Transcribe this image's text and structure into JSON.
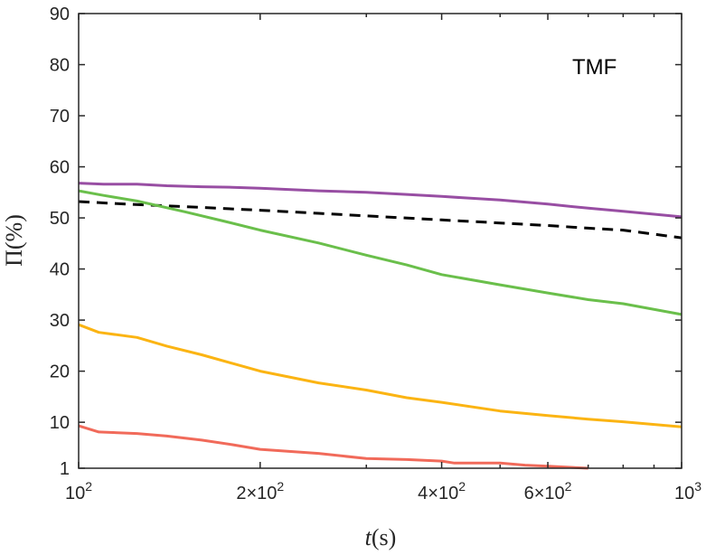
{
  "chart_data": {
    "type": "line",
    "title": "",
    "annotation": "TMF",
    "xlabel": "t(s)",
    "ylabel": "Π(%)",
    "xscale": "log",
    "xlim": [
      100,
      1000
    ],
    "ylim": [
      1,
      90
    ],
    "grid": false,
    "x_ticks": [
      {
        "value": 100,
        "base": "10",
        "exp": "2"
      },
      {
        "value": 200,
        "base": "2×10",
        "exp": "2"
      },
      {
        "value": 400,
        "base": "4×10",
        "exp": "2"
      },
      {
        "value": 600,
        "base": "6×10",
        "exp": "2"
      },
      {
        "value": 1000,
        "base": "10",
        "exp": "3"
      }
    ],
    "y_ticks": [
      {
        "value": 1,
        "label": "1"
      },
      {
        "value": 10,
        "label": "10"
      },
      {
        "value": 20,
        "label": "20"
      },
      {
        "value": 30,
        "label": "30"
      },
      {
        "value": 40,
        "label": "40"
      },
      {
        "value": 50,
        "label": "50"
      },
      {
        "value": 60,
        "label": "60"
      },
      {
        "value": 70,
        "label": "70"
      },
      {
        "value": 80,
        "label": "80"
      },
      {
        "value": 90,
        "label": "90"
      }
    ],
    "series": [
      {
        "color": "#984EA3",
        "style": "solid",
        "x": [
          100,
          110,
          125,
          140,
          160,
          180,
          200,
          250,
          300,
          350,
          400,
          500,
          600,
          700,
          800,
          1000
        ],
        "y": [
          56.8,
          56.6,
          56.6,
          56.3,
          56.1,
          56.0,
          55.8,
          55.3,
          55.0,
          54.6,
          54.2,
          53.5,
          52.7,
          51.9,
          51.3,
          50.2
        ]
      },
      {
        "color": "#000000",
        "style": "dashed",
        "x": [
          100,
          120,
          150,
          200,
          250,
          300,
          400,
          500,
          600,
          700,
          800,
          1000
        ],
        "y": [
          53.2,
          52.7,
          52.2,
          51.5,
          50.9,
          50.4,
          49.6,
          49.0,
          48.5,
          48.0,
          47.6,
          46.1
        ]
      },
      {
        "color": "#6ABF4B",
        "style": "solid",
        "x": [
          100,
          110,
          125,
          150,
          175,
          200,
          250,
          300,
          350,
          400,
          500,
          600,
          700,
          800,
          1000
        ],
        "y": [
          55.3,
          54.4,
          53.3,
          51.2,
          49.3,
          47.6,
          45.1,
          42.7,
          40.8,
          38.9,
          36.9,
          35.3,
          34.0,
          33.2,
          31.1
        ]
      },
      {
        "color": "#FBB413",
        "style": "solid",
        "x": [
          100,
          108,
          125,
          140,
          160,
          180,
          200,
          250,
          300,
          350,
          400,
          500,
          600,
          700,
          800,
          1000
        ],
        "y": [
          29.1,
          27.6,
          26.6,
          24.9,
          23.2,
          21.5,
          20.0,
          17.7,
          16.3,
          14.8,
          13.9,
          12.2,
          11.3,
          10.6,
          10.1,
          9.1
        ]
      },
      {
        "color": "#F16A5A",
        "style": "solid",
        "x": [
          100,
          108,
          125,
          140,
          160,
          180,
          200,
          250,
          300,
          350,
          400,
          420,
          500,
          550,
          600,
          700
        ],
        "y": [
          9.3,
          8.1,
          7.8,
          7.3,
          6.5,
          5.6,
          4.7,
          3.9,
          2.9,
          2.7,
          2.4,
          2.0,
          2.0,
          1.6,
          1.4,
          1.0
        ]
      }
    ]
  }
}
